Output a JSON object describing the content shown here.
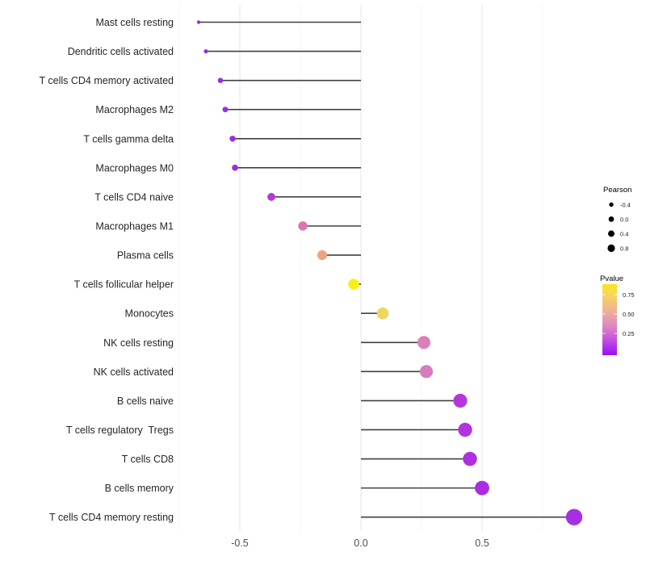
{
  "chart_data": {
    "type": "lollipop",
    "title": "",
    "xlabel": "",
    "ylabel": "",
    "xlim": [
      -0.76,
      0.96
    ],
    "baseline": 0,
    "grid": true,
    "x_axis": {
      "major_ticks": [
        -0.5,
        0.0,
        0.5
      ],
      "major_tick_labels": [
        "-0.5",
        "0.0",
        "0.5"
      ],
      "minor_ticks": [
        -0.75,
        -0.25,
        0.25,
        0.75
      ]
    },
    "points": [
      {
        "label": "Mast cells resting",
        "pearson": -0.67,
        "color": "#9430e0"
      },
      {
        "label": "Dendritic cells activated",
        "pearson": -0.64,
        "color": "#9a2ee2"
      },
      {
        "label": "T cells CD4 memory activated",
        "pearson": -0.58,
        "color": "#9a2ce2"
      },
      {
        "label": "Macrophages M2",
        "pearson": -0.56,
        "color": "#9c2ee2"
      },
      {
        "label": "T cells gamma delta",
        "pearson": -0.53,
        "color": "#9c2ce3"
      },
      {
        "label": "Macrophages M0",
        "pearson": -0.52,
        "color": "#9a2de3"
      },
      {
        "label": "T cells CD4 naive",
        "pearson": -0.37,
        "color": "#ae3bd8"
      },
      {
        "label": "Macrophages M1",
        "pearson": -0.24,
        "color": "#d878ae"
      },
      {
        "label": "Plasma cells",
        "pearson": -0.16,
        "color": "#eca580"
      },
      {
        "label": "T cells follicular helper",
        "pearson": -0.03,
        "color": "#f8ef12"
      },
      {
        "label": "Monocytes",
        "pearson": 0.09,
        "color": "#eed75d"
      },
      {
        "label": "NK cells resting",
        "pearson": 0.26,
        "color": "#d980ba"
      },
      {
        "label": "NK cells activated",
        "pearson": 0.27,
        "color": "#d77cbc"
      },
      {
        "label": "B cells naive",
        "pearson": 0.41,
        "color": "#b537dc"
      },
      {
        "label": "T cells regulatory  Tregs",
        "pearson": 0.43,
        "color": "#b134de"
      },
      {
        "label": "T cells CD8",
        "pearson": 0.45,
        "color": "#af30e0"
      },
      {
        "label": "B cells memory",
        "pearson": 0.5,
        "color": "#ac2ce2"
      },
      {
        "label": "T cells CD4 memory resting",
        "pearson": 0.88,
        "color": "#a62fe4"
      }
    ],
    "legend_pearson": {
      "title": "Pearson",
      "entries": [
        {
          "label": "-0.4",
          "value": -0.4
        },
        {
          "label": "0.0",
          "value": 0.0
        },
        {
          "label": "0.4",
          "value": 0.4
        },
        {
          "label": "0.8",
          "value": 0.8
        }
      ],
      "dot_color": "#000000"
    },
    "legend_pvalue": {
      "title": "Pvalue",
      "ticks": [
        {
          "label": "0.75"
        },
        {
          "label": "0.50"
        },
        {
          "label": "0.25"
        }
      ],
      "gradient_stops": [
        {
          "pos": 0.0,
          "color": "#f9e621"
        },
        {
          "pos": 0.15,
          "color": "#f7d55c"
        },
        {
          "pos": 0.32,
          "color": "#f1bb88"
        },
        {
          "pos": 0.47,
          "color": "#e79fab"
        },
        {
          "pos": 0.6,
          "color": "#dd84c4"
        },
        {
          "pos": 0.74,
          "color": "#cb5ddb"
        },
        {
          "pos": 0.88,
          "color": "#b133ec"
        },
        {
          "pos": 1.0,
          "color": "#9b0ff5"
        }
      ]
    },
    "colors": {
      "stem": "#404040",
      "grid_major": "#e7e7e7",
      "grid_minor": "#f4f4f4",
      "axis_text": "#4d4d4d",
      "category_text": "#262626",
      "legend_text": "#1a1a1a",
      "background": "#ffffff"
    }
  }
}
